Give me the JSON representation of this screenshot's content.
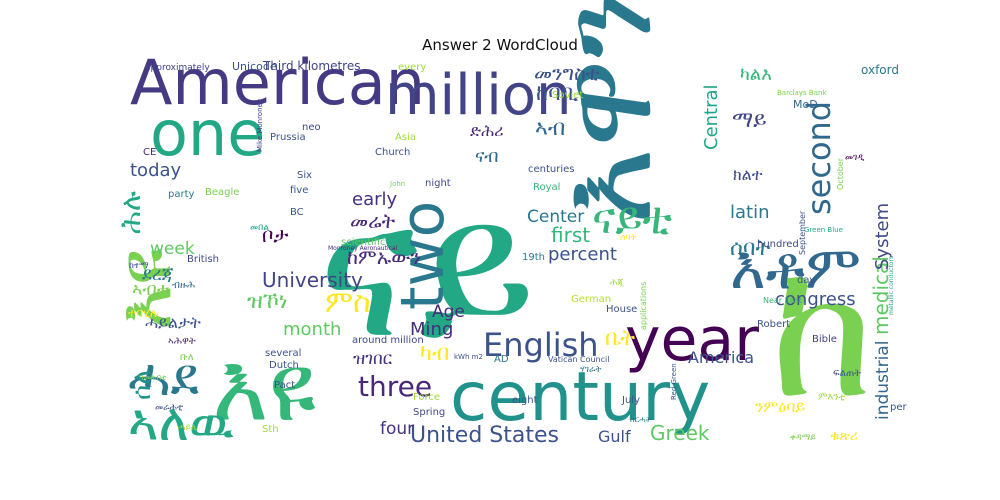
{
  "chart_data": {
    "type": "wordcloud",
    "title": "Answer 2 WordCloud",
    "colormap": "viridis",
    "background": "#ffffff",
    "words": [
      {
        "text": "ናይ",
        "color": "#22a884"
      },
      {
        "text": "እዩ",
        "color": "#35b779"
      },
      {
        "text": "እዩ",
        "color": "#7ad151"
      },
      {
        "text": "ከ",
        "color": "#7ad151"
      },
      {
        "text": "እዋን",
        "color": "#2a788e"
      },
      {
        "text": "American",
        "color": "#443983"
      },
      {
        "text": "one",
        "color": "#22a884"
      },
      {
        "text": "million",
        "color": "#414487"
      },
      {
        "text": "century",
        "color": "#21918c"
      },
      {
        "text": "year",
        "color": "#440154"
      },
      {
        "text": "two",
        "color": "#2a788e"
      },
      {
        "text": "ናይቲ",
        "color": "#35b779"
      },
      {
        "text": "እቶም",
        "color": "#31688e"
      },
      {
        "text": "ሓደ",
        "color": "#2a788e"
      },
      {
        "text": "ኣለዉ",
        "color": "#22a884"
      },
      {
        "text": "English",
        "color": "#3b528b"
      },
      {
        "text": "three",
        "color": "#482878"
      },
      {
        "text": "second",
        "color": "#31688e"
      },
      {
        "text": "United States",
        "color": "#3b528b"
      },
      {
        "text": "Greek",
        "color": "#5ec962"
      },
      {
        "text": "University",
        "color": "#414487"
      },
      {
        "text": "percent",
        "color": "#3b528b"
      },
      {
        "text": "first",
        "color": "#35b779"
      },
      {
        "text": "ምስ",
        "color": "#fde725"
      },
      {
        "text": "Age",
        "color": "#482878"
      },
      {
        "text": "Ming",
        "color": "#472d7b"
      },
      {
        "text": "month",
        "color": "#5ec962"
      },
      {
        "text": "congress",
        "color": "#3b528b"
      },
      {
        "text": "latin",
        "color": "#2a788e"
      },
      {
        "text": "industrial",
        "color": "#31688e"
      },
      {
        "text": "medical",
        "color": "#5ec962"
      },
      {
        "text": "System",
        "color": "#3e4a89"
      },
      {
        "text": "today",
        "color": "#3b528b"
      },
      {
        "text": "early",
        "color": "#46327e"
      },
      {
        "text": "Center",
        "color": "#2a788e"
      },
      {
        "text": "Central",
        "color": "#20a486"
      },
      {
        "text": "America",
        "color": "#3b528b"
      },
      {
        "text": "four",
        "color": "#46327e"
      },
      {
        "text": "Gulf",
        "color": "#3b528b"
      },
      {
        "text": "week",
        "color": "#5ec962"
      },
      {
        "text": "ሕሉ",
        "color": "#22a884"
      },
      {
        "text": "ካብ",
        "color": "#fde725"
      },
      {
        "text": "ዝገበር",
        "color": "#46327e"
      },
      {
        "text": "ቤት",
        "color": "#fde725"
      },
      {
        "text": "ሰባት",
        "color": "#2a788e"
      },
      {
        "text": "ማይ",
        "color": "#414487"
      },
      {
        "text": "ከባቢ",
        "color": "#3b528b"
      },
      {
        "text": "መንግስቲ",
        "color": "#3b528b"
      },
      {
        "text": "ካልእ",
        "color": "#35b779"
      },
      {
        "text": "ኣብ",
        "color": "#31688e"
      },
      {
        "text": "ሰለ",
        "color": "#21918c"
      },
      {
        "text": "around million",
        "color": "#3e4a89"
      },
      {
        "text": "Third kilometres",
        "color": "#414487"
      },
      {
        "text": "Unicode",
        "color": "#3b528b"
      },
      {
        "text": "approximately",
        "color": "#414487"
      },
      {
        "text": "every",
        "color": "#9fda3a"
      },
      {
        "text": "Soviet",
        "color": "#9fda3a"
      },
      {
        "text": "oxford",
        "color": "#2a788e"
      },
      {
        "text": "MoD",
        "color": "#31688e"
      },
      {
        "text": "Barclays Bank",
        "color": "#7ad151"
      },
      {
        "text": "Church",
        "color": "#3b528b"
      },
      {
        "text": "Asia",
        "color": "#9fda3a"
      },
      {
        "text": "centuries",
        "color": "#3b528b"
      },
      {
        "text": "Royal",
        "color": "#35b779"
      },
      {
        "text": "night",
        "color": "#3e4a89"
      },
      {
        "text": "John",
        "color": "#7ad151"
      },
      {
        "text": "scientific",
        "color": "#5ec962"
      },
      {
        "text": "19th",
        "color": "#2a788e"
      },
      {
        "text": "Prussia",
        "color": "#3b528b"
      },
      {
        "text": "neo",
        "color": "#3e4a89"
      },
      {
        "text": "Six",
        "color": "#3b528b"
      },
      {
        "text": "five",
        "color": "#3b528b"
      },
      {
        "text": "BC",
        "color": "#3b528b"
      },
      {
        "text": "British",
        "color": "#3e4a89"
      },
      {
        "text": "Beagle",
        "color": "#7ad151"
      },
      {
        "text": "party",
        "color": "#2a788e"
      },
      {
        "text": "CE",
        "color": "#482878"
      },
      {
        "text": "Mike Monroney",
        "color": "#414487"
      },
      {
        "text": "Monroney Aeronautical",
        "color": "#482878"
      },
      {
        "text": "several",
        "color": "#3b528b"
      },
      {
        "text": "Dutch",
        "color": "#3b528b"
      },
      {
        "text": "Pact",
        "color": "#3e4a89"
      },
      {
        "text": "Force",
        "color": "#9fda3a"
      },
      {
        "text": "Spring",
        "color": "#3e4a89"
      },
      {
        "text": "Sth",
        "color": "#9fda3a"
      },
      {
        "text": "AD",
        "color": "#2a788e"
      },
      {
        "text": "eight",
        "color": "#3b528b"
      },
      {
        "text": "July",
        "color": "#3b528b"
      },
      {
        "text": "Vatican Council",
        "color": "#3b528b"
      },
      {
        "text": "German",
        "color": "#b5de2b"
      },
      {
        "text": "kWh m2",
        "color": "#3b528b"
      },
      {
        "text": "House",
        "color": "#3b528b"
      },
      {
        "text": "applications",
        "color": "#7ad151"
      },
      {
        "text": "Robert",
        "color": "#3b528b"
      },
      {
        "text": "Near East",
        "color": "#35b779"
      },
      {
        "text": "day",
        "color": "#3b528b"
      },
      {
        "text": "hundred",
        "color": "#3e4a89"
      },
      {
        "text": "September",
        "color": "#3b528b"
      },
      {
        "text": "October",
        "color": "#7ad151"
      },
      {
        "text": "Green Blue",
        "color": "#22a884"
      },
      {
        "text": "Bible",
        "color": "#414487"
      },
      {
        "text": "Red Green",
        "color": "#3b528b"
      },
      {
        "text": "per",
        "color": "#3b528b"
      },
      {
        "text": "metallic conductors",
        "color": "#22a884"
      },
      {
        "text": "ብዙሕ",
        "color": "#31688e"
      },
      {
        "text": "ቡለ",
        "color": "#7ad151"
      },
      {
        "text": "ፍልጠት",
        "color": "#3b528b"
      },
      {
        "text": "ሓይሊ",
        "color": "#9fda3a"
      },
      {
        "text": "ዝኾነ",
        "color": "#5ec962"
      },
      {
        "text": "ተባሂሉ",
        "color": "#fde725"
      },
      {
        "text": "ኣሕዋት",
        "color": "#482878"
      },
      {
        "text": "መበል",
        "color": "#20a486"
      },
      {
        "text": "ኣብቲ",
        "color": "#7ad151"
      },
      {
        "text": "ዓመት",
        "color": "#7ad151"
      },
      {
        "text": "ከተማ",
        "color": "#3b528b"
      },
      {
        "text": "ንምዕባይ",
        "color": "#fde725"
      },
      {
        "text": "ክልተ",
        "color": "#3e4a89"
      },
      {
        "text": "ሓይልታት",
        "color": "#3b528b"
      },
      {
        "text": "መራሕቲ",
        "color": "#3b528b"
      },
      {
        "text": "ምእንቲ",
        "color": "#9fda3a"
      },
      {
        "text": "ሃገራት",
        "color": "#2a788e"
      },
      {
        "text": "ድሕሪ",
        "color": "#482878"
      },
      {
        "text": "ናብ",
        "color": "#31688e"
      },
      {
        "text": "ቦታ",
        "color": "#440154"
      },
      {
        "text": "ሰባት",
        "color": "#fde725"
      },
      {
        "text": "ከምኡውን",
        "color": "#472d7b"
      },
      {
        "text": "መሬት",
        "color": "#482878"
      },
      {
        "text": "ሕጂ",
        "color": "#9fda3a"
      },
      {
        "text": "ደረጃ",
        "color": "#2a788e"
      },
      {
        "text": "ኣብቲ",
        "color": "#7ad151"
      },
      {
        "text": "ቀዳማይ",
        "color": "#7ad151"
      },
      {
        "text": "ቁጽሪ",
        "color": "#fde725"
      },
      {
        "text": "መገዲ",
        "color": "#440154"
      },
      {
        "text": "ስርሓት",
        "color": "#2a788e"
      }
    ]
  }
}
